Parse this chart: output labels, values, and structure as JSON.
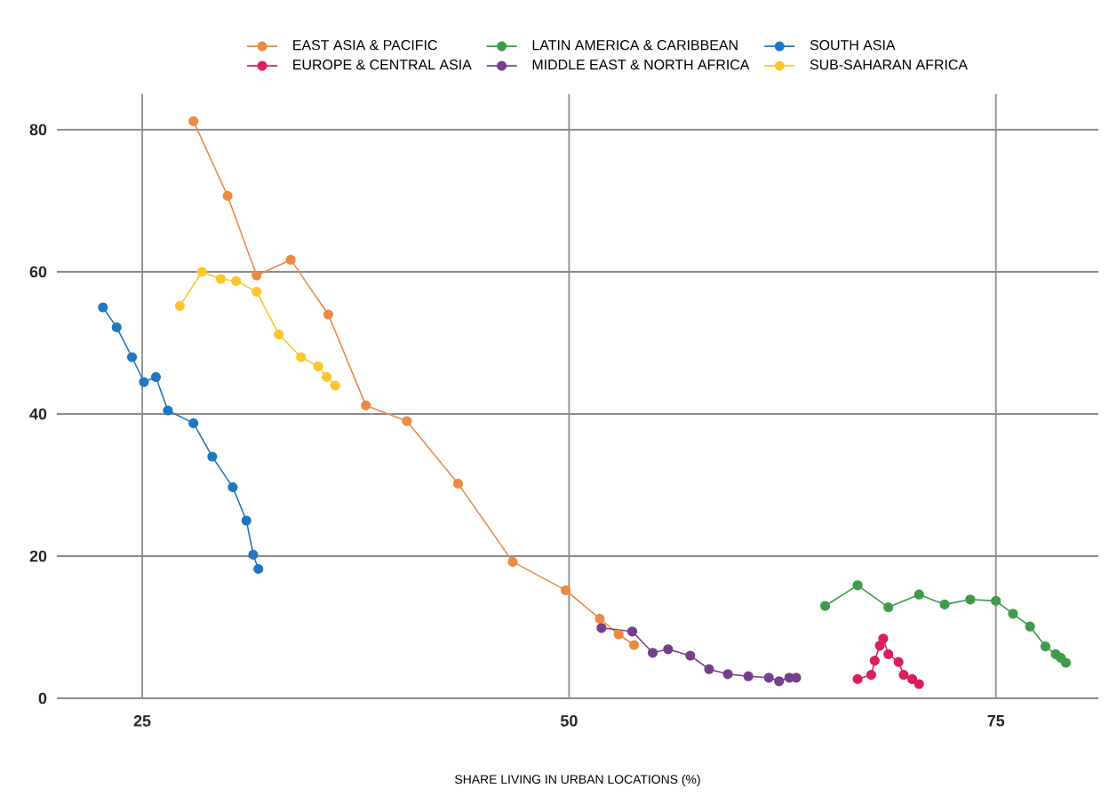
{
  "chart_data": {
    "type": "line",
    "xlabel": "SHARE LIVING IN URBAN LOCATIONS (%)",
    "xlim": [
      20,
      81
    ],
    "ylim": [
      0,
      85
    ],
    "xticks": [
      25,
      50,
      75
    ],
    "yticks": [
      0,
      20,
      40,
      60,
      80
    ],
    "grid": true,
    "legend": "top",
    "marker": "circle",
    "line_style": "solid",
    "series": [
      {
        "name": "EAST ASIA & PACIFIC",
        "color": "#eb8a44",
        "x": [
          28.0,
          30.0,
          31.7,
          33.7,
          35.9,
          38.1,
          40.5,
          43.5,
          46.7,
          49.8,
          51.8,
          52.9,
          53.8
        ],
        "values": [
          81.2,
          70.7,
          59.5,
          61.7,
          54.0,
          41.2,
          39.0,
          30.2,
          19.2,
          15.2,
          11.2,
          9.0,
          7.5
        ]
      },
      {
        "name": "EUROPE & CENTRAL ASIA",
        "color": "#dc1e5a",
        "x": [
          66.9,
          67.7,
          67.9,
          68.2,
          68.4,
          68.7,
          69.3,
          69.6,
          70.1,
          70.5
        ],
        "values": [
          2.7,
          3.3,
          5.3,
          7.4,
          8.4,
          6.2,
          5.1,
          3.3,
          2.7,
          2.0
        ]
      },
      {
        "name": "LATIN AMERICA & CARIBBEAN",
        "color": "#3c9c48",
        "x": [
          65.0,
          66.9,
          68.7,
          70.5,
          72.0,
          73.5,
          75.0,
          76.0,
          77.0,
          77.9,
          78.5,
          78.8,
          79.1
        ],
        "values": [
          13.0,
          15.9,
          12.8,
          14.6,
          13.2,
          13.9,
          13.7,
          11.9,
          10.1,
          7.3,
          6.2,
          5.7,
          5.0
        ]
      },
      {
        "name": "MIDDLE EAST & NORTH AFRICA",
        "color": "#763f8c",
        "x": [
          51.9,
          53.7,
          54.9,
          55.8,
          57.1,
          58.2,
          59.3,
          60.5,
          61.7,
          62.3,
          62.9,
          63.3
        ],
        "values": [
          9.9,
          9.4,
          6.4,
          6.9,
          6.0,
          4.1,
          3.4,
          3.1,
          2.9,
          2.4,
          2.9,
          2.9
        ]
      },
      {
        "name": "SOUTH ASIA",
        "color": "#1f78bf",
        "x": [
          22.7,
          23.5,
          24.4,
          25.1,
          25.8,
          26.5,
          28.0,
          29.1,
          30.3,
          31.1,
          31.5,
          31.8
        ],
        "values": [
          55.0,
          52.2,
          48.0,
          44.5,
          45.2,
          40.5,
          38.7,
          34.0,
          29.7,
          25.0,
          20.2,
          18.2
        ]
      },
      {
        "name": "SUB-SAHARAN AFRICA",
        "color": "#fcc62d",
        "x": [
          27.2,
          28.5,
          29.6,
          30.5,
          31.7,
          33.0,
          34.3,
          35.3,
          35.8,
          36.3
        ],
        "values": [
          55.2,
          60.0,
          59.0,
          58.7,
          57.2,
          51.2,
          48.0,
          46.7,
          45.2,
          44.0
        ]
      }
    ]
  }
}
